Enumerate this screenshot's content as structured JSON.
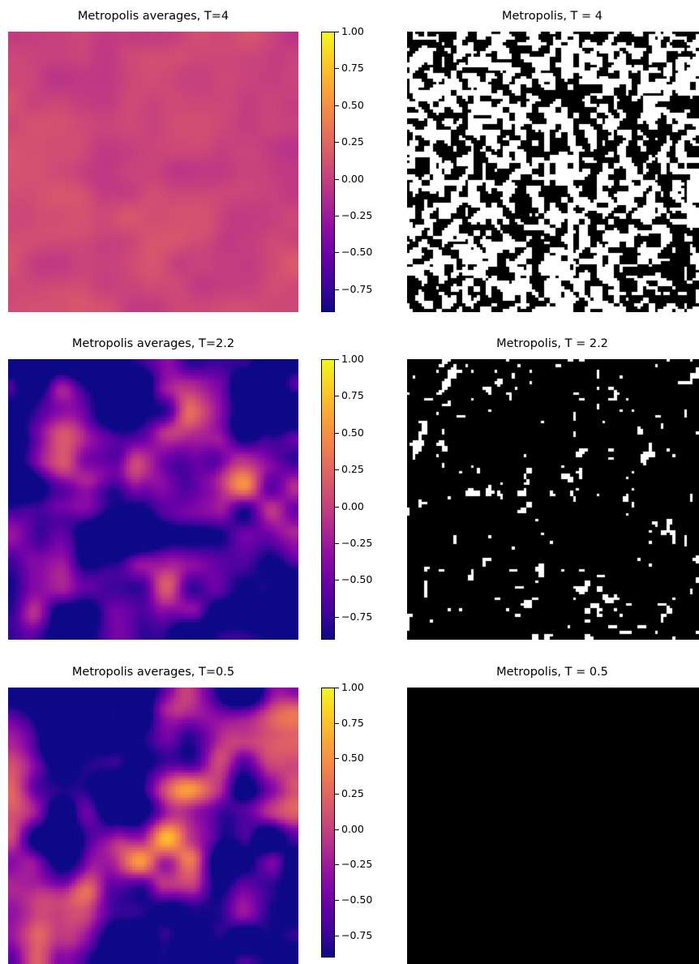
{
  "chart_data": [
    {
      "type": "heatmap",
      "title": "Metropolis averages, T=4",
      "colormap": "plasma",
      "value_range": [
        -0.9,
        1.0
      ],
      "colorbar_ticks": [
        "1.00",
        "0.75",
        "0.50",
        "0.25",
        "0.00",
        "−0.25",
        "−0.50",
        "−0.75"
      ],
      "pattern": {
        "mean": 0.05,
        "spread": 0.1,
        "scale": 0.9,
        "seed": 11
      }
    },
    {
      "type": "heatmap",
      "title": "Metropolis, T = 4",
      "colormap": "binary",
      "pattern": {
        "mean": 0.0,
        "spread": 1.0,
        "scale": 0.25,
        "seed": 12
      }
    },
    {
      "type": "heatmap",
      "title": "Metropolis averages, T=2.2",
      "colormap": "plasma",
      "value_range": [
        -0.9,
        1.0
      ],
      "colorbar_ticks": [
        "1.00",
        "0.75",
        "0.50",
        "0.25",
        "0.00",
        "−0.25",
        "−0.50",
        "−0.75"
      ],
      "pattern": {
        "mean": -0.62,
        "spread": 0.9,
        "scale": 1.0,
        "seed": 21
      }
    },
    {
      "type": "heatmap",
      "title": "Metropolis, T = 2.2",
      "colormap": "binary",
      "pattern": {
        "mean": -0.75,
        "spread": 1.0,
        "scale": 0.3,
        "seed": 22
      }
    },
    {
      "type": "heatmap",
      "title": "Metropolis averages, T=0.5",
      "colormap": "plasma",
      "value_range": [
        -0.9,
        1.0
      ],
      "colorbar_ticks": [
        "1.00",
        "0.75",
        "0.50",
        "0.25",
        "0.00",
        "−0.25",
        "−0.50",
        "−0.75"
      ],
      "pattern": {
        "mean": -0.62,
        "spread": 0.95,
        "scale": 1.0,
        "seed": 31
      }
    },
    {
      "type": "heatmap",
      "title": "Metropolis, T = 0.5",
      "colormap": "binary",
      "pattern": {
        "mean": -1.0,
        "spread": 0.0,
        "scale": 1.0,
        "seed": 32
      }
    }
  ]
}
